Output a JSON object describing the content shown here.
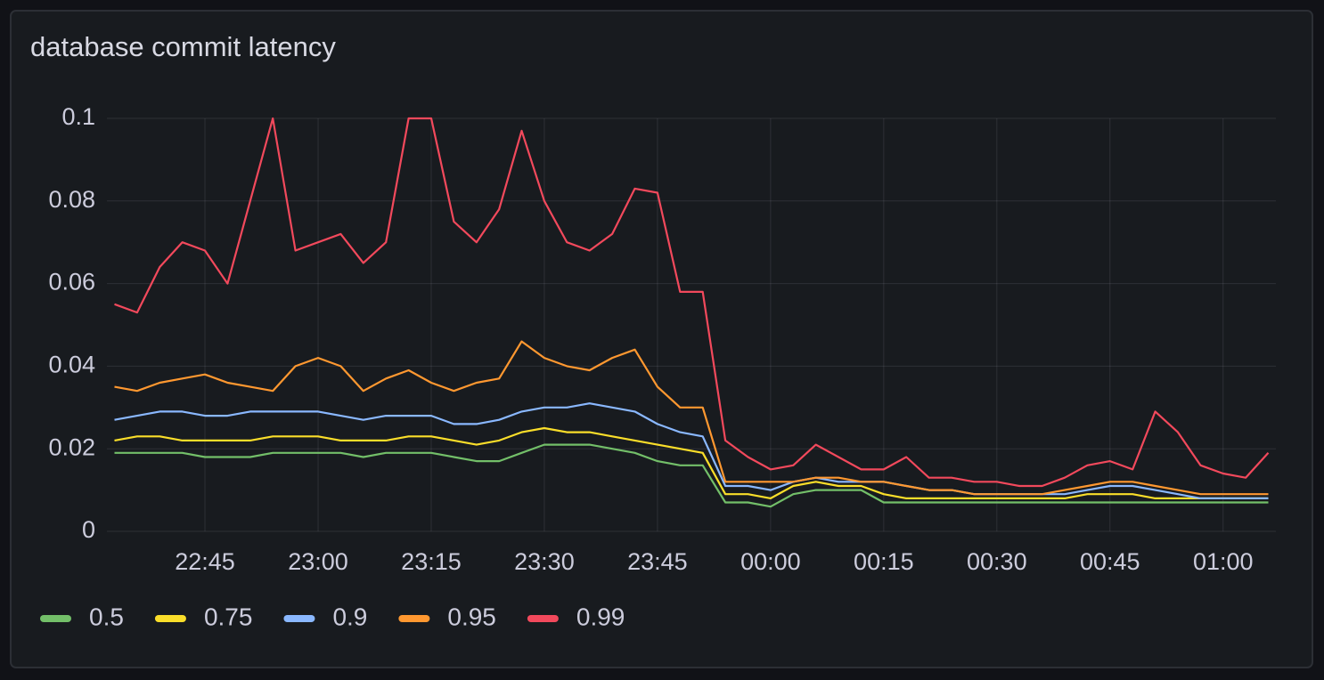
{
  "chart_data": {
    "type": "line",
    "title": "database commit latency",
    "x": [
      "22:33",
      "22:36",
      "22:39",
      "22:42",
      "22:45",
      "22:48",
      "22:51",
      "22:54",
      "22:57",
      "23:00",
      "23:03",
      "23:06",
      "23:09",
      "23:12",
      "23:15",
      "23:18",
      "23:21",
      "23:24",
      "23:27",
      "23:30",
      "23:33",
      "23:36",
      "23:39",
      "23:42",
      "23:45",
      "23:48",
      "23:51",
      "23:54",
      "23:57",
      "00:00",
      "00:03",
      "00:06",
      "00:09",
      "00:12",
      "00:15",
      "00:18",
      "00:21",
      "00:24",
      "00:27",
      "00:30",
      "00:33",
      "00:36",
      "00:39",
      "00:42",
      "00:45",
      "00:48",
      "00:51",
      "00:54",
      "00:57",
      "01:00",
      "01:03",
      "01:06"
    ],
    "xlim": [
      "22:32",
      "01:07"
    ],
    "xticks": [
      "22:45",
      "23:00",
      "23:15",
      "23:30",
      "23:45",
      "00:00",
      "00:15",
      "00:30",
      "00:45",
      "01:00"
    ],
    "ylim": [
      0,
      0.1
    ],
    "yticks": [
      0,
      0.02,
      0.04,
      0.06,
      0.08,
      0.1
    ],
    "grid": true,
    "legend": "bottom-left",
    "series": [
      {
        "name": "0.5",
        "color": "#73bf69",
        "values": [
          0.019,
          0.019,
          0.019,
          0.019,
          0.018,
          0.018,
          0.018,
          0.019,
          0.019,
          0.019,
          0.019,
          0.018,
          0.019,
          0.019,
          0.019,
          0.018,
          0.017,
          0.017,
          0.019,
          0.021,
          0.021,
          0.021,
          0.02,
          0.019,
          0.017,
          0.016,
          0.016,
          0.007,
          0.007,
          0.006,
          0.009,
          0.01,
          0.01,
          0.01,
          0.007,
          0.007,
          0.007,
          0.007,
          0.007,
          0.007,
          0.007,
          0.007,
          0.007,
          0.007,
          0.007,
          0.007,
          0.007,
          0.007,
          0.007,
          0.007,
          0.007,
          0.007
        ]
      },
      {
        "name": "0.75",
        "color": "#fade2a",
        "values": [
          0.022,
          0.023,
          0.023,
          0.022,
          0.022,
          0.022,
          0.022,
          0.023,
          0.023,
          0.023,
          0.022,
          0.022,
          0.022,
          0.023,
          0.023,
          0.022,
          0.021,
          0.022,
          0.024,
          0.025,
          0.024,
          0.024,
          0.023,
          0.022,
          0.021,
          0.02,
          0.019,
          0.009,
          0.009,
          0.008,
          0.011,
          0.012,
          0.011,
          0.011,
          0.009,
          0.008,
          0.008,
          0.008,
          0.008,
          0.008,
          0.008,
          0.008,
          0.008,
          0.009,
          0.009,
          0.009,
          0.008,
          0.008,
          0.008,
          0.008,
          0.008,
          0.008
        ]
      },
      {
        "name": "0.9",
        "color": "#8ab8ff",
        "values": [
          0.027,
          0.028,
          0.029,
          0.029,
          0.028,
          0.028,
          0.029,
          0.029,
          0.029,
          0.029,
          0.028,
          0.027,
          0.028,
          0.028,
          0.028,
          0.026,
          0.026,
          0.027,
          0.029,
          0.03,
          0.03,
          0.031,
          0.03,
          0.029,
          0.026,
          0.024,
          0.023,
          0.011,
          0.011,
          0.01,
          0.012,
          0.013,
          0.012,
          0.012,
          0.012,
          0.011,
          0.01,
          0.01,
          0.009,
          0.009,
          0.009,
          0.009,
          0.009,
          0.01,
          0.011,
          0.011,
          0.01,
          0.009,
          0.008,
          0.008,
          0.008,
          0.008
        ]
      },
      {
        "name": "0.95",
        "color": "#ff9830",
        "values": [
          0.035,
          0.034,
          0.036,
          0.037,
          0.038,
          0.036,
          0.035,
          0.034,
          0.04,
          0.042,
          0.04,
          0.034,
          0.037,
          0.039,
          0.036,
          0.034,
          0.036,
          0.037,
          0.046,
          0.042,
          0.04,
          0.039,
          0.042,
          0.044,
          0.035,
          0.03,
          0.03,
          0.012,
          0.012,
          0.012,
          0.012,
          0.013,
          0.013,
          0.012,
          0.012,
          0.011,
          0.01,
          0.01,
          0.009,
          0.009,
          0.009,
          0.009,
          0.01,
          0.011,
          0.012,
          0.012,
          0.011,
          0.01,
          0.009,
          0.009,
          0.009,
          0.009
        ]
      },
      {
        "name": "0.99",
        "color": "#f2495c",
        "values": [
          0.055,
          0.053,
          0.064,
          0.07,
          0.068,
          0.06,
          0.08,
          0.1,
          0.068,
          0.07,
          0.072,
          0.065,
          0.07,
          0.1,
          0.1,
          0.075,
          0.07,
          0.078,
          0.097,
          0.08,
          0.07,
          0.068,
          0.072,
          0.083,
          0.082,
          0.058,
          0.058,
          0.022,
          0.018,
          0.015,
          0.016,
          0.021,
          0.018,
          0.015,
          0.015,
          0.018,
          0.013,
          0.013,
          0.012,
          0.012,
          0.011,
          0.011,
          0.013,
          0.016,
          0.017,
          0.015,
          0.029,
          0.024,
          0.016,
          0.014,
          0.013,
          0.019
        ]
      }
    ]
  }
}
